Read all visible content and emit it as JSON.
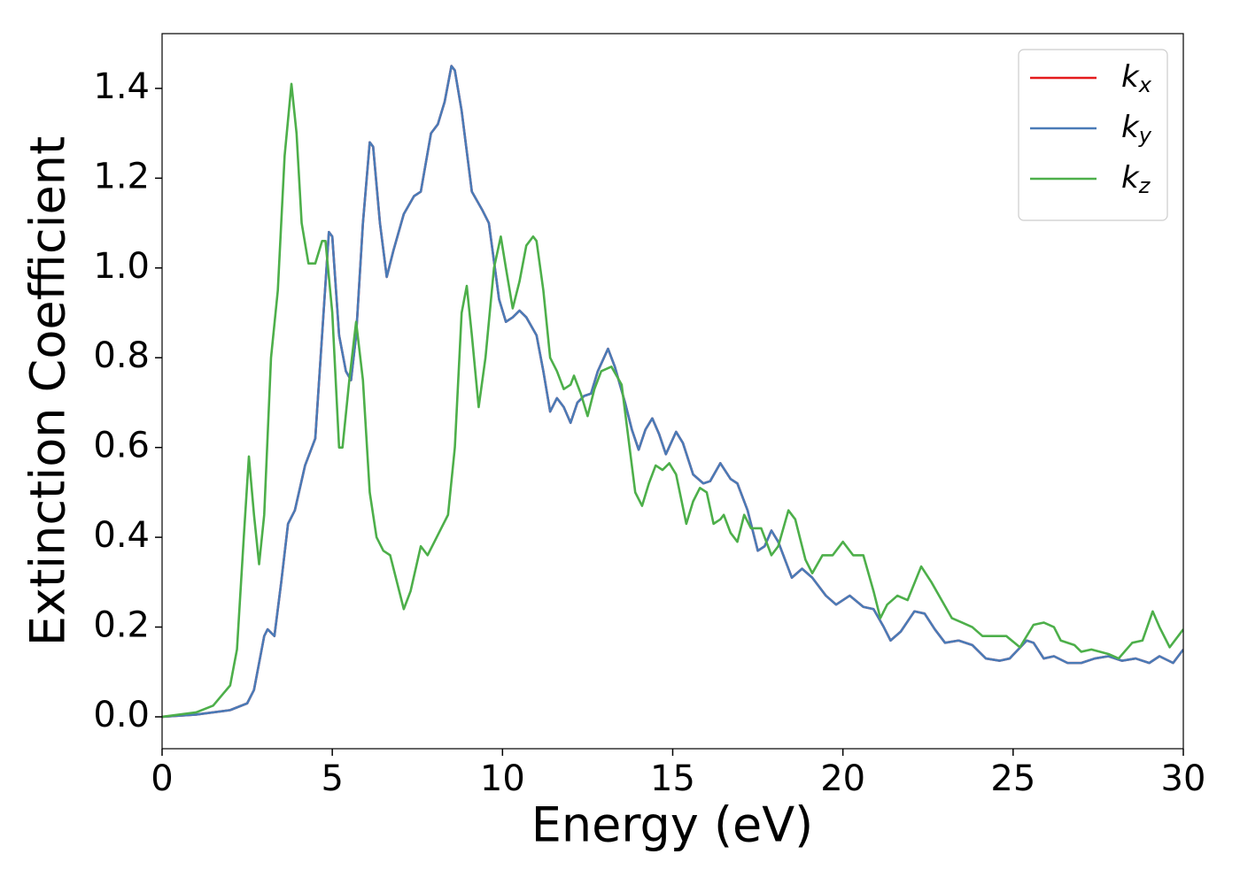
{
  "chart_data": {
    "type": "line",
    "xlabel": "Energy (eV)",
    "ylabel": "Extinction Coefficient",
    "xlim": [
      0,
      30
    ],
    "ylim": [
      -0.071,
      1.522
    ],
    "xticks": [
      0,
      5,
      10,
      15,
      20,
      25,
      30
    ],
    "yticks": [
      {
        "value": 0.0,
        "label": "0.0"
      },
      0.2,
      0.4,
      0.6,
      0.8,
      {
        "value": 1.0,
        "label": "1.0"
      },
      1.2,
      1.4
    ],
    "legend": "upper right",
    "series": [
      {
        "name": "kx",
        "color": "#e41a1c",
        "x": [
          0,
          1,
          2,
          2.5,
          2.7,
          3.0,
          3.1,
          3.3,
          3.5,
          3.7,
          3.9,
          4.2,
          4.5,
          4.7,
          4.9,
          5.0,
          5.2,
          5.4,
          5.55,
          5.7,
          5.9,
          6.1,
          6.2,
          6.4,
          6.6,
          6.8,
          7.1,
          7.4,
          7.6,
          7.9,
          8.1,
          8.3,
          8.5,
          8.6,
          8.8,
          9.1,
          9.4,
          9.6,
          9.9,
          10.1,
          10.3,
          10.5,
          10.7,
          11.0,
          11.2,
          11.4,
          11.6,
          11.8,
          12.0,
          12.2,
          12.4,
          12.6,
          12.8,
          13.1,
          13.3,
          13.6,
          13.8,
          14.0,
          14.2,
          14.4,
          14.6,
          14.8,
          15.1,
          15.3,
          15.6,
          15.9,
          16.1,
          16.4,
          16.7,
          16.9,
          17.2,
          17.5,
          17.7,
          17.9,
          18.1,
          18.5,
          18.8,
          19.1,
          19.5,
          19.8,
          20.2,
          20.6,
          20.9,
          21.2,
          21.4,
          21.7,
          22.1,
          22.4,
          22.7,
          23.0,
          23.4,
          23.8,
          24.2,
          24.6,
          24.9,
          25.4,
          25.6,
          25.9,
          26.2,
          26.6,
          27.0,
          27.4,
          27.8,
          28.2,
          28.6,
          29.0,
          29.3,
          29.7,
          30
        ],
        "values": [
          0,
          0.005,
          0.015,
          0.03,
          0.06,
          0.18,
          0.195,
          0.18,
          0.3,
          0.43,
          0.46,
          0.56,
          0.62,
          0.85,
          1.08,
          1.07,
          0.85,
          0.77,
          0.75,
          0.85,
          1.1,
          1.28,
          1.27,
          1.1,
          0.98,
          1.04,
          1.12,
          1.16,
          1.17,
          1.3,
          1.32,
          1.37,
          1.45,
          1.44,
          1.35,
          1.17,
          1.13,
          1.1,
          0.93,
          0.88,
          0.89,
          0.905,
          0.89,
          0.85,
          0.77,
          0.68,
          0.71,
          0.69,
          0.655,
          0.7,
          0.715,
          0.72,
          0.77,
          0.82,
          0.78,
          0.7,
          0.64,
          0.595,
          0.64,
          0.665,
          0.63,
          0.585,
          0.635,
          0.61,
          0.54,
          0.52,
          0.525,
          0.565,
          0.53,
          0.52,
          0.46,
          0.37,
          0.38,
          0.415,
          0.39,
          0.31,
          0.33,
          0.31,
          0.27,
          0.25,
          0.27,
          0.245,
          0.24,
          0.2,
          0.17,
          0.19,
          0.235,
          0.23,
          0.195,
          0.165,
          0.17,
          0.16,
          0.13,
          0.125,
          0.13,
          0.17,
          0.165,
          0.13,
          0.135,
          0.12,
          0.12,
          0.13,
          0.135,
          0.125,
          0.13,
          0.12,
          0.135,
          0.12,
          0.15
        ]
      },
      {
        "name": "ky",
        "color": "#4a7bb7",
        "x": [
          0,
          1,
          2,
          2.5,
          2.7,
          3.0,
          3.1,
          3.3,
          3.5,
          3.7,
          3.9,
          4.2,
          4.5,
          4.7,
          4.9,
          5.0,
          5.2,
          5.4,
          5.55,
          5.7,
          5.9,
          6.1,
          6.2,
          6.4,
          6.6,
          6.8,
          7.1,
          7.4,
          7.6,
          7.9,
          8.1,
          8.3,
          8.5,
          8.6,
          8.8,
          9.1,
          9.4,
          9.6,
          9.9,
          10.1,
          10.3,
          10.5,
          10.7,
          11.0,
          11.2,
          11.4,
          11.6,
          11.8,
          12.0,
          12.2,
          12.4,
          12.6,
          12.8,
          13.1,
          13.3,
          13.6,
          13.8,
          14.0,
          14.2,
          14.4,
          14.6,
          14.8,
          15.1,
          15.3,
          15.6,
          15.9,
          16.1,
          16.4,
          16.7,
          16.9,
          17.2,
          17.5,
          17.7,
          17.9,
          18.1,
          18.5,
          18.8,
          19.1,
          19.5,
          19.8,
          20.2,
          20.6,
          20.9,
          21.2,
          21.4,
          21.7,
          22.1,
          22.4,
          22.7,
          23.0,
          23.4,
          23.8,
          24.2,
          24.6,
          24.9,
          25.4,
          25.6,
          25.9,
          26.2,
          26.6,
          27.0,
          27.4,
          27.8,
          28.2,
          28.6,
          29.0,
          29.3,
          29.7,
          30
        ],
        "values": [
          0,
          0.005,
          0.015,
          0.03,
          0.06,
          0.18,
          0.195,
          0.18,
          0.3,
          0.43,
          0.46,
          0.56,
          0.62,
          0.85,
          1.08,
          1.07,
          0.85,
          0.77,
          0.75,
          0.85,
          1.1,
          1.28,
          1.27,
          1.1,
          0.98,
          1.04,
          1.12,
          1.16,
          1.17,
          1.3,
          1.32,
          1.37,
          1.45,
          1.44,
          1.35,
          1.17,
          1.13,
          1.1,
          0.93,
          0.88,
          0.89,
          0.905,
          0.89,
          0.85,
          0.77,
          0.68,
          0.71,
          0.69,
          0.655,
          0.7,
          0.715,
          0.72,
          0.77,
          0.82,
          0.78,
          0.7,
          0.64,
          0.595,
          0.64,
          0.665,
          0.63,
          0.585,
          0.635,
          0.61,
          0.54,
          0.52,
          0.525,
          0.565,
          0.53,
          0.52,
          0.46,
          0.37,
          0.38,
          0.415,
          0.39,
          0.31,
          0.33,
          0.31,
          0.27,
          0.25,
          0.27,
          0.245,
          0.24,
          0.2,
          0.17,
          0.19,
          0.235,
          0.23,
          0.195,
          0.165,
          0.17,
          0.16,
          0.13,
          0.125,
          0.13,
          0.17,
          0.165,
          0.13,
          0.135,
          0.12,
          0.12,
          0.13,
          0.135,
          0.125,
          0.13,
          0.12,
          0.135,
          0.12,
          0.15
        ]
      },
      {
        "name": "kz",
        "color": "#4daf4a",
        "x": [
          0,
          1,
          1.5,
          2.0,
          2.2,
          2.4,
          2.55,
          2.7,
          2.85,
          3.0,
          3.2,
          3.4,
          3.6,
          3.8,
          3.95,
          4.1,
          4.3,
          4.5,
          4.7,
          4.8,
          5.0,
          5.2,
          5.3,
          5.5,
          5.7,
          5.9,
          6.1,
          6.3,
          6.5,
          6.7,
          6.9,
          7.1,
          7.3,
          7.6,
          7.8,
          8.0,
          8.2,
          8.4,
          8.6,
          8.8,
          8.95,
          9.1,
          9.3,
          9.5,
          9.75,
          9.95,
          10.1,
          10.3,
          10.5,
          10.7,
          10.9,
          11.0,
          11.2,
          11.4,
          11.6,
          11.8,
          12.0,
          12.1,
          12.3,
          12.5,
          12.7,
          12.9,
          13.2,
          13.5,
          13.7,
          13.9,
          14.1,
          14.3,
          14.5,
          14.7,
          14.9,
          15.1,
          15.4,
          15.6,
          15.8,
          16.0,
          16.2,
          16.4,
          16.5,
          16.7,
          16.9,
          17.1,
          17.3,
          17.6,
          17.9,
          18.1,
          18.4,
          18.6,
          18.9,
          19.1,
          19.4,
          19.7,
          20.0,
          20.3,
          20.6,
          20.9,
          21.1,
          21.3,
          21.6,
          21.9,
          22.3,
          22.6,
          22.9,
          23.2,
          23.5,
          23.8,
          24.1,
          24.4,
          24.8,
          25.2,
          25.6,
          25.9,
          26.2,
          26.4,
          26.8,
          27.0,
          27.3,
          27.8,
          28.1,
          28.5,
          28.8,
          29.1,
          29.3,
          29.6,
          30
        ],
        "values": [
          0,
          0.01,
          0.025,
          0.07,
          0.15,
          0.4,
          0.58,
          0.45,
          0.34,
          0.45,
          0.8,
          0.95,
          1.25,
          1.41,
          1.3,
          1.1,
          1.01,
          1.01,
          1.06,
          1.06,
          0.9,
          0.6,
          0.6,
          0.75,
          0.88,
          0.75,
          0.5,
          0.4,
          0.37,
          0.36,
          0.3,
          0.24,
          0.28,
          0.38,
          0.36,
          0.39,
          0.42,
          0.45,
          0.6,
          0.9,
          0.96,
          0.85,
          0.69,
          0.8,
          1.0,
          1.07,
          1.0,
          0.91,
          0.97,
          1.05,
          1.07,
          1.06,
          0.95,
          0.8,
          0.77,
          0.73,
          0.74,
          0.76,
          0.72,
          0.67,
          0.73,
          0.77,
          0.78,
          0.74,
          0.62,
          0.5,
          0.47,
          0.52,
          0.56,
          0.55,
          0.565,
          0.54,
          0.43,
          0.48,
          0.51,
          0.5,
          0.43,
          0.44,
          0.45,
          0.41,
          0.39,
          0.45,
          0.42,
          0.42,
          0.36,
          0.38,
          0.46,
          0.44,
          0.35,
          0.32,
          0.36,
          0.36,
          0.39,
          0.36,
          0.36,
          0.28,
          0.22,
          0.25,
          0.27,
          0.26,
          0.335,
          0.3,
          0.26,
          0.22,
          0.21,
          0.2,
          0.18,
          0.18,
          0.18,
          0.155,
          0.205,
          0.21,
          0.2,
          0.17,
          0.16,
          0.145,
          0.15,
          0.14,
          0.13,
          0.165,
          0.17,
          0.235,
          0.2,
          0.155,
          0.195
        ]
      }
    ]
  }
}
